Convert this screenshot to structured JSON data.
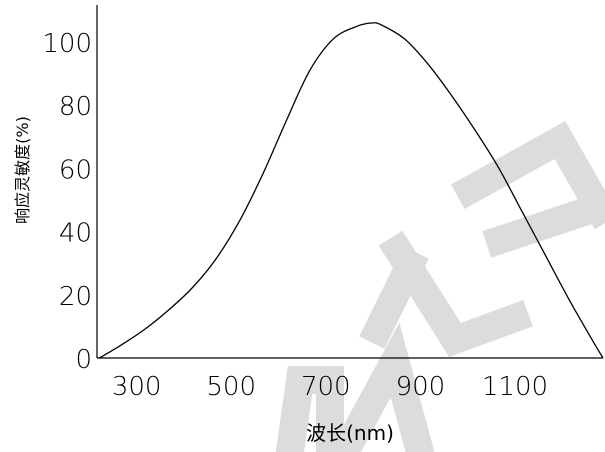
{
  "chart_data": {
    "type": "line",
    "xlabel": "波长(nm)",
    "ylabel": "响应灵敏度(%)",
    "x_ticks": [
      "300",
      "500",
      "700",
      "900",
      "1100"
    ],
    "y_ticks": [
      "0",
      "20",
      "40",
      "60",
      "80",
      "100"
    ],
    "xlim": [
      250,
      1320
    ],
    "ylim": [
      0,
      106
    ],
    "grid": false,
    "series": [
      {
        "x": [
          255,
          300,
          350,
          400,
          450,
          500,
          550,
          600,
          650,
          700,
          750,
          800,
          830,
          850,
          900,
          950,
          1000,
          1050,
          1100,
          1150,
          1200,
          1250,
          1300,
          1320
        ],
        "y": [
          0,
          4,
          9,
          15,
          22,
          31,
          43,
          58,
          75,
          91,
          101,
          105,
          106,
          105.5,
          101,
          93,
          83,
          72,
          60,
          46,
          32,
          18,
          5,
          0
        ]
      }
    ]
  }
}
